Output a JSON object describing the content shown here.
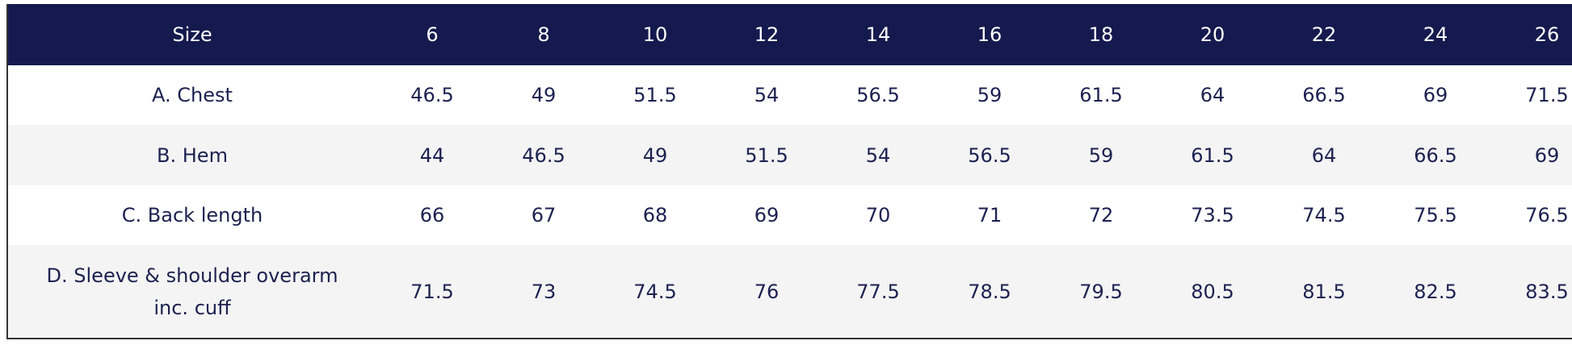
{
  "table": {
    "header": [
      "Size",
      "6",
      "8",
      "10",
      "12",
      "14",
      "16",
      "18",
      "20",
      "22",
      "24",
      "26"
    ],
    "rows": [
      [
        "A. Chest",
        46.5,
        49,
        51.5,
        54,
        56.5,
        59,
        61.5,
        64,
        66.5,
        69,
        71.5
      ],
      [
        "B. Hem",
        44,
        46.5,
        49,
        51.5,
        54,
        56.5,
        59,
        61.5,
        64,
        66.5,
        69
      ],
      [
        "C. Back length",
        66,
        67,
        68,
        69,
        70,
        71,
        72,
        73.5,
        74.5,
        75.5,
        76.5
      ],
      [
        "D. Sleeve & shoulder overarm inc. cuff",
        71.5,
        73,
        74.5,
        76,
        77.5,
        78.5,
        79.5,
        80.5,
        81.5,
        82.5,
        83.5
      ]
    ]
  }
}
